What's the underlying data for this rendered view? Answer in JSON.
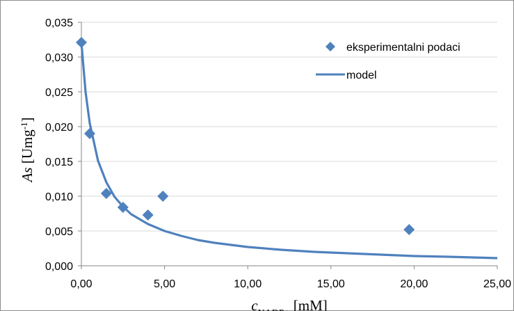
{
  "chart_data": {
    "type": "scatter",
    "xlabel": {
      "symbol": "c",
      "subscript": "NADP+",
      "unit": " [mM]"
    },
    "ylabel": {
      "symbol": "As",
      "unit_main": " [Umg",
      "unit_sup": "-1",
      "unit_end": "]"
    },
    "xlim": [
      0,
      25
    ],
    "ylim": [
      0,
      0.035
    ],
    "x_ticks": [
      0,
      5,
      10,
      15,
      20,
      25
    ],
    "x_tick_labels": [
      "0,00",
      "5,00",
      "10,00",
      "15,00",
      "20,00",
      "25,00"
    ],
    "y_ticks": [
      0,
      0.005,
      0.01,
      0.015,
      0.02,
      0.025,
      0.03,
      0.035
    ],
    "y_tick_labels": [
      "0,000",
      "0,005",
      "0,010",
      "0,015",
      "0,020",
      "0,025",
      "0,030",
      "0,035"
    ],
    "grid": "horizontal",
    "legend_position": "top-right",
    "series": [
      {
        "name": "eksperimentalni podaci",
        "kind": "points",
        "marker": "diamond",
        "color": "#4f81bd",
        "points": [
          [
            0.0,
            0.0321
          ],
          [
            0.5,
            0.019
          ],
          [
            1.5,
            0.0104
          ],
          [
            2.5,
            0.0084
          ],
          [
            4.0,
            0.0073
          ],
          [
            4.9,
            0.01
          ],
          [
            19.7,
            0.0052
          ]
        ]
      },
      {
        "name": "model",
        "kind": "line",
        "color": "#4f81bd",
        "points": [
          [
            0.0,
            0.0321
          ],
          [
            0.25,
            0.025
          ],
          [
            0.5,
            0.0205
          ],
          [
            1.0,
            0.0151
          ],
          [
            1.5,
            0.012
          ],
          [
            2.0,
            0.0099
          ],
          [
            2.5,
            0.0085
          ],
          [
            3.0,
            0.0074
          ],
          [
            4.0,
            0.006
          ],
          [
            5.0,
            0.005
          ],
          [
            6.0,
            0.0043
          ],
          [
            7.0,
            0.0037
          ],
          [
            8.0,
            0.0033
          ],
          [
            9.0,
            0.003
          ],
          [
            10.0,
            0.0027
          ],
          [
            12.0,
            0.0023
          ],
          [
            14.0,
            0.002
          ],
          [
            16.0,
            0.0018
          ],
          [
            18.0,
            0.0016
          ],
          [
            20.0,
            0.0014
          ],
          [
            22.0,
            0.0013
          ],
          [
            25.0,
            0.0011
          ]
        ]
      }
    ]
  }
}
